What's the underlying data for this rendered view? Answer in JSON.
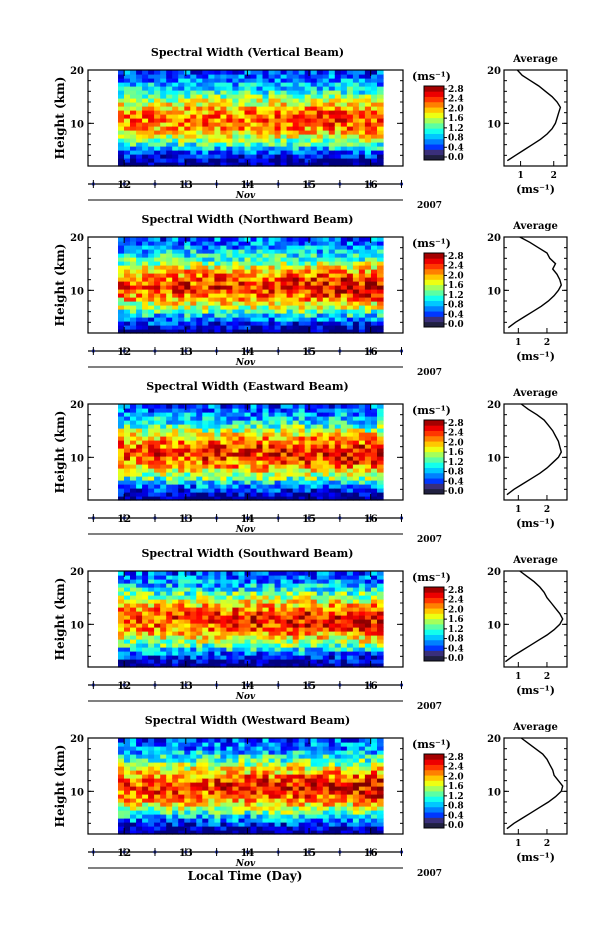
{
  "figure": {
    "xlabel": "Local Time (Day)",
    "month_label": "Nov",
    "year_label": "2007"
  },
  "chart_data": [
    {
      "type": "heatmap",
      "title": "Spectral Width (Vertical Beam)",
      "ylabel": "Height (km)",
      "x_ticks": [
        "12",
        "13",
        "14",
        "15",
        "16"
      ],
      "y_ticks": [
        "20",
        "10"
      ],
      "ylim": [
        2,
        20
      ],
      "colorbar": {
        "unit": "(ms⁻¹)",
        "ticks": [
          "2.8",
          "2.4",
          "2.0",
          "1.6",
          "1.2",
          "0.8",
          "0.4",
          "0.0"
        ],
        "range": [
          0,
          2.8
        ]
      },
      "average_profile": {
        "title": "Average",
        "xlabel": "(ms⁻¹)",
        "x_ticks": [
          "1",
          "2"
        ],
        "xlim": [
          0.5,
          2.4
        ],
        "y_ticks": [
          "20",
          "10"
        ],
        "height_km": [
          3,
          4,
          5,
          6,
          7,
          8,
          9,
          10,
          11,
          12,
          13,
          14,
          15,
          16,
          17,
          18,
          19,
          20
        ],
        "values": [
          0.6,
          0.85,
          1.1,
          1.35,
          1.6,
          1.8,
          1.95,
          2.05,
          2.1,
          2.15,
          2.2,
          2.1,
          1.95,
          1.75,
          1.55,
          1.3,
          1.05,
          0.9
        ]
      }
    },
    {
      "type": "heatmap",
      "title": "Spectral Width (Northward Beam)",
      "ylabel": "Height (km)",
      "x_ticks": [
        "12",
        "13",
        "14",
        "15",
        "16"
      ],
      "y_ticks": [
        "20",
        "10"
      ],
      "ylim": [
        2,
        20
      ],
      "colorbar": {
        "unit": "(ms⁻¹)",
        "ticks": [
          "2.8",
          "2.4",
          "2.0",
          "1.6",
          "1.2",
          "0.8",
          "0.4",
          "0.0"
        ],
        "range": [
          0,
          2.8
        ]
      },
      "average_profile": {
        "title": "Average",
        "xlabel": "(ms⁻¹)",
        "x_ticks": [
          "1",
          "2"
        ],
        "xlim": [
          0.5,
          2.7
        ],
        "y_ticks": [
          "20",
          "10"
        ],
        "height_km": [
          3,
          4,
          5,
          6,
          7,
          8,
          9,
          10,
          11,
          12,
          13,
          14,
          15,
          16,
          17,
          18,
          19,
          20
        ],
        "values": [
          0.65,
          0.9,
          1.2,
          1.5,
          1.8,
          2.05,
          2.25,
          2.4,
          2.5,
          2.45,
          2.35,
          2.2,
          2.3,
          2.1,
          2.0,
          1.7,
          1.4,
          1.05
        ]
      }
    },
    {
      "type": "heatmap",
      "title": "Spectral Width (Eastward Beam)",
      "ylabel": "Height (km)",
      "x_ticks": [
        "12",
        "13",
        "14",
        "15",
        "16"
      ],
      "y_ticks": [
        "20",
        "10"
      ],
      "ylim": [
        2,
        20
      ],
      "colorbar": {
        "unit": "(ms⁻¹)",
        "ticks": [
          "2.8",
          "2.4",
          "2.0",
          "1.6",
          "1.2",
          "0.8",
          "0.4",
          "0.0"
        ],
        "range": [
          0,
          2.8
        ]
      },
      "average_profile": {
        "title": "Average",
        "xlabel": "(ms⁻¹)",
        "x_ticks": [
          "1",
          "2"
        ],
        "xlim": [
          0.5,
          2.7
        ],
        "y_ticks": [
          "20",
          "10"
        ],
        "height_km": [
          3,
          4,
          5,
          6,
          7,
          8,
          9,
          10,
          11,
          12,
          13,
          14,
          15,
          16,
          17,
          18,
          19,
          20
        ],
        "values": [
          0.6,
          0.85,
          1.15,
          1.45,
          1.75,
          2.0,
          2.2,
          2.4,
          2.5,
          2.45,
          2.4,
          2.3,
          2.2,
          2.05,
          1.9,
          1.65,
          1.35,
          1.1
        ]
      }
    },
    {
      "type": "heatmap",
      "title": "Spectral Width (Southward Beam)",
      "ylabel": "Height (km)",
      "x_ticks": [
        "12",
        "13",
        "14",
        "15",
        "16"
      ],
      "y_ticks": [
        "20",
        "10"
      ],
      "ylim": [
        2,
        20
      ],
      "colorbar": {
        "unit": "(ms⁻¹)",
        "ticks": [
          "2.8",
          "2.4",
          "2.0",
          "1.6",
          "1.2",
          "0.8",
          "0.4",
          "0.0"
        ],
        "range": [
          0,
          2.8
        ]
      },
      "average_profile": {
        "title": "Average",
        "xlabel": "(ms⁻¹)",
        "x_ticks": [
          "1",
          "2"
        ],
        "xlim": [
          0.5,
          2.7
        ],
        "y_ticks": [
          "20",
          "10"
        ],
        "height_km": [
          3,
          4,
          5,
          6,
          7,
          8,
          9,
          10,
          11,
          12,
          13,
          14,
          15,
          16,
          17,
          18,
          19,
          20
        ],
        "values": [
          0.55,
          0.8,
          1.1,
          1.4,
          1.7,
          2.0,
          2.25,
          2.45,
          2.55,
          2.45,
          2.3,
          2.15,
          2.0,
          1.9,
          1.75,
          1.55,
          1.3,
          1.05
        ]
      }
    },
    {
      "type": "heatmap",
      "title": "Spectral Width (Westward Beam)",
      "ylabel": "Height (km)",
      "x_ticks": [
        "12",
        "13",
        "14",
        "15",
        "16"
      ],
      "y_ticks": [
        "20",
        "10"
      ],
      "ylim": [
        2,
        20
      ],
      "colorbar": {
        "unit": "(ms⁻¹)",
        "ticks": [
          "2.8",
          "2.4",
          "2.0",
          "1.6",
          "1.2",
          "0.8",
          "0.4",
          "0.0"
        ],
        "range": [
          0,
          2.8
        ]
      },
      "average_profile": {
        "title": "Average",
        "xlabel": "(ms⁻¹)",
        "x_ticks": [
          "1",
          "2"
        ],
        "xlim": [
          0.5,
          2.7
        ],
        "y_ticks": [
          "20",
          "10"
        ],
        "height_km": [
          3,
          4,
          5,
          6,
          7,
          8,
          9,
          10,
          11,
          12,
          13,
          14,
          15,
          16,
          17,
          18,
          19,
          20
        ],
        "values": [
          0.6,
          0.85,
          1.15,
          1.45,
          1.75,
          2.05,
          2.3,
          2.5,
          2.55,
          2.4,
          2.25,
          2.2,
          2.1,
          2.0,
          1.85,
          1.6,
          1.35,
          1.1
        ]
      }
    }
  ]
}
